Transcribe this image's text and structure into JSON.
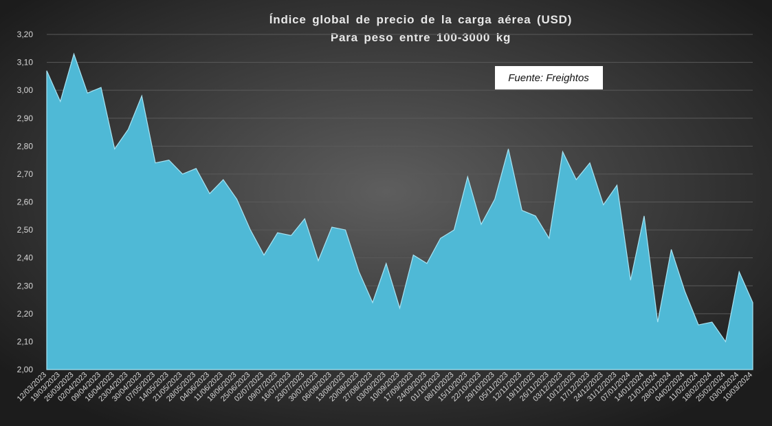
{
  "chart_data": {
    "type": "area",
    "title": "Índice global de precio de la carga aérea (USD)",
    "subtitle": "Para peso entre 100-3000 kg",
    "annotation": "Fuente: Freightos",
    "color": "#4fb9d6",
    "grid": true,
    "categories": [
      "12/03/2023",
      "19/03/2023",
      "26/03/2023",
      "02/04/2023",
      "09/04/2023",
      "16/04/2023",
      "23/04/2023",
      "30/04/2023",
      "07/05/2023",
      "14/05/2023",
      "21/05/2023",
      "28/05/2023",
      "04/06/2023",
      "11/06/2023",
      "18/06/2023",
      "25/06/2023",
      "02/07/2023",
      "09/07/2023",
      "16/07/2023",
      "23/07/2023",
      "30/07/2023",
      "06/08/2023",
      "13/08/2023",
      "20/08/2023",
      "27/08/2023",
      "03/09/2023",
      "10/09/2023",
      "17/09/2023",
      "24/09/2023",
      "01/10/2023",
      "08/10/2023",
      "15/10/2023",
      "22/10/2023",
      "29/10/2023",
      "05/11/2023",
      "12/11/2023",
      "19/11/2023",
      "26/11/2023",
      "03/12/2023",
      "10/12/2023",
      "17/12/2023",
      "24/12/2023",
      "31/12/2023",
      "07/01/2024",
      "14/01/2024",
      "21/01/2024",
      "28/01/2024",
      "04/02/2024",
      "11/02/2024",
      "18/02/2024",
      "25/02/2024",
      "03/03/2024",
      "10/03/2024"
    ],
    "values": [
      3.07,
      2.96,
      3.13,
      2.99,
      3.01,
      2.79,
      2.86,
      2.98,
      2.74,
      2.75,
      2.7,
      2.72,
      2.63,
      2.68,
      2.61,
      2.5,
      2.41,
      2.49,
      2.48,
      2.54,
      2.39,
      2.51,
      2.5,
      2.35,
      2.24,
      2.38,
      2.22,
      2.41,
      2.38,
      2.47,
      2.5,
      2.69,
      2.52,
      2.61,
      2.79,
      2.57,
      2.55,
      2.47,
      2.78,
      2.68,
      2.74,
      2.59,
      2.66,
      2.32,
      2.55,
      2.17,
      2.43,
      2.28,
      2.16,
      2.17,
      2.1,
      2.35,
      2.24
    ],
    "ylim": [
      2.0,
      3.2
    ],
    "yticks": [
      {
        "value": 2.0,
        "label": "2,00"
      },
      {
        "value": 2.1,
        "label": "2,10"
      },
      {
        "value": 2.2,
        "label": "2,20"
      },
      {
        "value": 2.3,
        "label": "2,30"
      },
      {
        "value": 2.4,
        "label": "2,40"
      },
      {
        "value": 2.5,
        "label": "2,50"
      },
      {
        "value": 2.6,
        "label": "2,60"
      },
      {
        "value": 2.7,
        "label": "2,70"
      },
      {
        "value": 2.8,
        "label": "2,80"
      },
      {
        "value": 2.9,
        "label": "2,90"
      },
      {
        "value": 3.0,
        "label": "3,00"
      },
      {
        "value": 3.1,
        "label": "3,10"
      },
      {
        "value": 3.2,
        "label": "3,20"
      }
    ]
  }
}
